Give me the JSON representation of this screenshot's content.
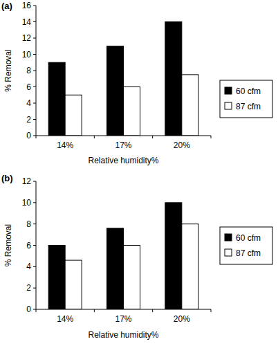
{
  "chart_data": [
    {
      "type": "bar",
      "title": "(a)",
      "x_label": "Relative humidity%",
      "y_label": "% Removal",
      "categories": [
        "14%",
        "17%",
        "20%"
      ],
      "series": [
        {
          "name": "60 cfm",
          "color": "#000000",
          "values": [
            9,
            11,
            14
          ]
        },
        {
          "name": "87 cfm",
          "color": "#ffffff",
          "values": [
            5,
            6,
            7.5
          ]
        }
      ],
      "ylim": [
        0,
        16
      ],
      "yticks": [
        0,
        2,
        4,
        6,
        8,
        10,
        12,
        14,
        16
      ],
      "grid": false,
      "legend": "right"
    },
    {
      "type": "bar",
      "title": "(b)",
      "x_label": "Relative humidity%",
      "y_label": "% Removal",
      "categories": [
        "14%",
        "17%",
        "20%"
      ],
      "series": [
        {
          "name": "60 cfm",
          "color": "#000000",
          "values": [
            6,
            7.6,
            10
          ]
        },
        {
          "name": "87 cfm",
          "color": "#ffffff",
          "values": [
            4.6,
            6,
            8
          ]
        }
      ],
      "ylim": [
        0,
        12
      ],
      "yticks": [
        0,
        2,
        4,
        6,
        8,
        10,
        12
      ],
      "grid": false,
      "legend": "right"
    }
  ]
}
